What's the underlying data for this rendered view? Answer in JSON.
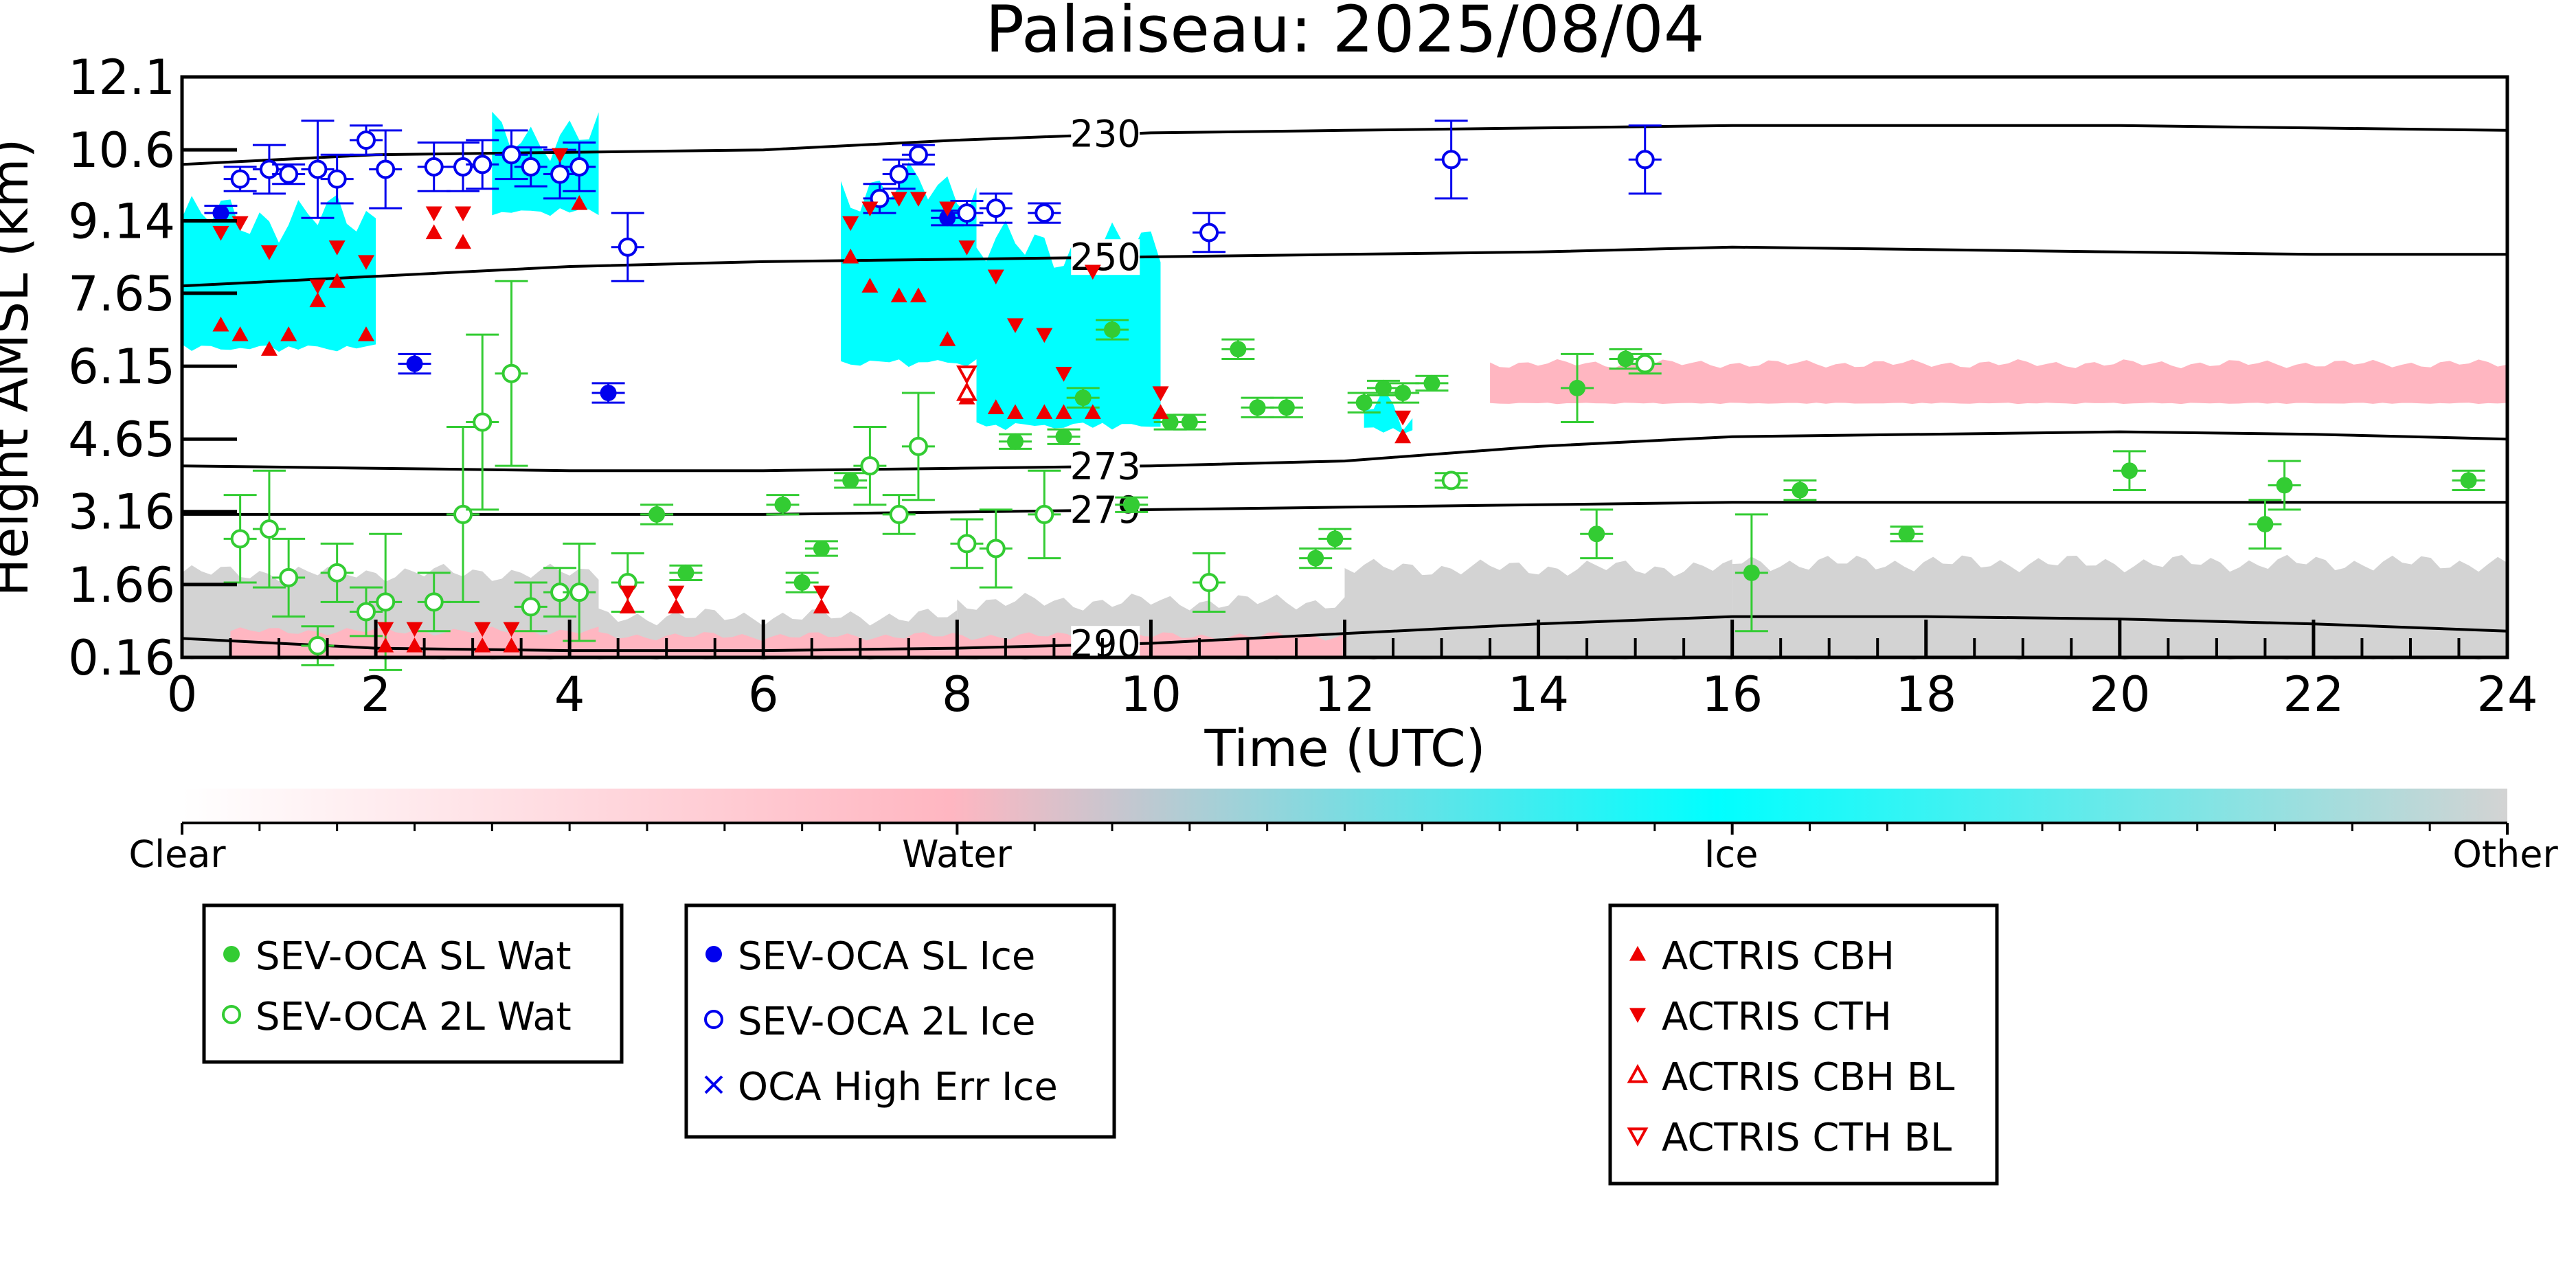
{
  "chart_data": {
    "type": "scatter",
    "title": "Palaiseau: 2025/08/04",
    "xlabel": "Time (UTC)",
    "ylabel": "Height AMSL (km)",
    "xlim": [
      0,
      24
    ],
    "ylim": [
      0.16,
      12.1
    ],
    "x_ticks": [
      0,
      2,
      4,
      6,
      8,
      10,
      12,
      14,
      16,
      18,
      20,
      22,
      24
    ],
    "y_ticks": [
      0.16,
      1.66,
      3.16,
      4.65,
      6.15,
      7.65,
      9.14,
      10.6,
      12.1
    ],
    "y_tick_labels": [
      "0.16",
      "1.66",
      "3.16",
      "4.65",
      "6.15",
      "7.65",
      "9.14",
      "10.6",
      "12.1"
    ],
    "grid": false,
    "background_field": {
      "description": "cloud classification",
      "colorbar_labels": [
        "Clear",
        "Water",
        "Ice",
        "Other"
      ],
      "colors": {
        "clear": "#ffffff",
        "water": "#ffb6c1",
        "ice": "#00ffff",
        "other": "#d3d3d3"
      },
      "ice_regions": [
        {
          "t0": 0.0,
          "t1": 2.0,
          "z0": 6.6,
          "z1": 9.2
        },
        {
          "t0": 3.2,
          "t1": 4.3,
          "z0": 9.4,
          "z1": 10.9
        },
        {
          "t0": 6.8,
          "t1": 8.2,
          "z0": 6.3,
          "z1": 9.8
        },
        {
          "t0": 8.2,
          "t1": 10.1,
          "z0": 5.0,
          "z1": 8.6
        },
        {
          "t0": 12.2,
          "t1": 12.7,
          "z0": 4.9,
          "z1": 5.3
        }
      ],
      "water_regions": [
        {
          "t0": 0.5,
          "t1": 4.3,
          "z0": 0.18,
          "z1": 0.7
        },
        {
          "t0": 4.3,
          "t1": 12.0,
          "z0": 0.18,
          "z1": 0.6
        },
        {
          "t0": 13.5,
          "t1": 24.0,
          "z0": 5.4,
          "z1": 6.2
        }
      ],
      "other_regions": [
        {
          "t0": 0.0,
          "t1": 4.3,
          "z0": 0.16,
          "z1": 1.9
        },
        {
          "t0": 4.3,
          "t1": 8.0,
          "z0": 0.16,
          "z1": 1.0
        },
        {
          "t0": 8.0,
          "t1": 12.0,
          "z0": 0.16,
          "z1": 1.3
        },
        {
          "t0": 12.0,
          "t1": 16.0,
          "z0": 0.16,
          "z1": 2.0
        },
        {
          "t0": 16.0,
          "t1": 24.0,
          "z0": 0.16,
          "z1": 2.1
        }
      ]
    },
    "isotherms": [
      {
        "label": "230",
        "x": [
          0,
          2,
          4,
          6,
          8,
          10,
          12,
          14,
          16,
          18,
          20,
          22,
          24
        ],
        "y": [
          10.3,
          10.5,
          10.55,
          10.6,
          10.8,
          10.95,
          11.0,
          11.05,
          11.1,
          11.1,
          11.1,
          11.05,
          11.0
        ]
      },
      {
        "label": "250",
        "x": [
          0,
          2,
          4,
          6,
          8,
          10,
          12,
          14,
          16,
          18,
          20,
          22,
          24
        ],
        "y": [
          7.8,
          8.0,
          8.2,
          8.3,
          8.35,
          8.4,
          8.45,
          8.5,
          8.6,
          8.55,
          8.5,
          8.45,
          8.45
        ]
      },
      {
        "label": "273",
        "x": [
          0,
          2,
          4,
          6,
          8,
          10,
          12,
          14,
          16,
          18,
          20,
          22,
          24
        ],
        "y": [
          4.1,
          4.05,
          4.0,
          4.0,
          4.05,
          4.1,
          4.2,
          4.5,
          4.7,
          4.75,
          4.8,
          4.75,
          4.65
        ]
      },
      {
        "label": "279",
        "x": [
          0,
          2,
          4,
          6,
          8,
          10,
          12,
          14,
          16,
          18,
          20,
          22,
          24
        ],
        "y": [
          3.1,
          3.1,
          3.1,
          3.1,
          3.15,
          3.2,
          3.25,
          3.3,
          3.35,
          3.35,
          3.35,
          3.35,
          3.35
        ]
      },
      {
        "label": "290",
        "x": [
          0,
          2,
          4,
          6,
          8,
          10,
          12,
          14,
          16,
          18,
          20,
          22,
          24
        ],
        "y": [
          0.55,
          0.35,
          0.3,
          0.3,
          0.35,
          0.45,
          0.65,
          0.85,
          1.0,
          1.0,
          0.95,
          0.85,
          0.7
        ]
      }
    ],
    "series": [
      {
        "name": "SEV-OCA SL Wat",
        "color": "#33cc33",
        "marker": "filled-circle",
        "points": [
          {
            "x": 4.9,
            "y": 3.1,
            "err": 0.2
          },
          {
            "x": 5.2,
            "y": 1.9,
            "err": 0.15
          },
          {
            "x": 6.2,
            "y": 3.3,
            "err": 0.2
          },
          {
            "x": 6.4,
            "y": 1.7,
            "err": 0.2
          },
          {
            "x": 6.6,
            "y": 2.4,
            "err": 0.15
          },
          {
            "x": 6.9,
            "y": 3.8,
            "err": 0.15
          },
          {
            "x": 8.6,
            "y": 4.6,
            "err": 0.15
          },
          {
            "x": 9.1,
            "y": 4.7,
            "err": 0.15
          },
          {
            "x": 9.3,
            "y": 5.5,
            "err": 0.2
          },
          {
            "x": 9.6,
            "y": 6.9,
            "err": 0.2
          },
          {
            "x": 9.8,
            "y": 3.3,
            "err": 0.15
          },
          {
            "x": 10.2,
            "y": 5.0,
            "err": 0.15
          },
          {
            "x": 10.4,
            "y": 5.0,
            "err": 0.15
          },
          {
            "x": 10.9,
            "y": 6.5,
            "err": 0.2
          },
          {
            "x": 11.1,
            "y": 5.3,
            "err": 0.2
          },
          {
            "x": 11.4,
            "y": 5.3,
            "err": 0.2
          },
          {
            "x": 11.7,
            "y": 2.2,
            "err": 0.2
          },
          {
            "x": 11.9,
            "y": 2.6,
            "err": 0.2
          },
          {
            "x": 12.2,
            "y": 5.4,
            "err": 0.2
          },
          {
            "x": 12.4,
            "y": 5.7,
            "err": 0.15
          },
          {
            "x": 12.6,
            "y": 5.6,
            "err": 0.2
          },
          {
            "x": 12.9,
            "y": 5.8,
            "err": 0.15
          },
          {
            "x": 14.4,
            "y": 5.7,
            "err": 0.7
          },
          {
            "x": 14.6,
            "y": 2.7,
            "err": 0.5
          },
          {
            "x": 14.9,
            "y": 6.3,
            "err": 0.2
          },
          {
            "x": 16.2,
            "y": 1.9,
            "err": 1.2
          },
          {
            "x": 16.7,
            "y": 3.6,
            "err": 0.2
          },
          {
            "x": 17.8,
            "y": 2.7,
            "err": 0.15
          },
          {
            "x": 20.1,
            "y": 4.0,
            "err": 0.4
          },
          {
            "x": 21.5,
            "y": 2.9,
            "err": 0.5
          },
          {
            "x": 21.7,
            "y": 3.7,
            "err": 0.5
          },
          {
            "x": 23.6,
            "y": 3.8,
            "err": 0.2
          }
        ]
      },
      {
        "name": "SEV-OCA 2L Wat",
        "color": "#33cc33",
        "marker": "open-circle",
        "points": [
          {
            "x": 0.6,
            "y": 2.6,
            "err": 0.9
          },
          {
            "x": 0.9,
            "y": 2.8,
            "err": 1.2
          },
          {
            "x": 1.1,
            "y": 1.8,
            "err": 0.8
          },
          {
            "x": 1.4,
            "y": 0.4,
            "err": 0.4
          },
          {
            "x": 1.6,
            "y": 1.9,
            "err": 0.6
          },
          {
            "x": 1.9,
            "y": 1.1,
            "err": 0.5
          },
          {
            "x": 2.1,
            "y": 1.3,
            "err": 1.4
          },
          {
            "x": 2.6,
            "y": 1.3,
            "err": 0.6
          },
          {
            "x": 2.9,
            "y": 3.1,
            "err": 1.8
          },
          {
            "x": 3.1,
            "y": 5.0,
            "err": 1.8
          },
          {
            "x": 3.4,
            "y": 6.0,
            "err": 1.9
          },
          {
            "x": 3.6,
            "y": 1.2,
            "err": 0.5
          },
          {
            "x": 3.9,
            "y": 1.5,
            "err": 0.5
          },
          {
            "x": 4.1,
            "y": 1.5,
            "err": 1.0
          },
          {
            "x": 4.6,
            "y": 1.7,
            "err": 0.6
          },
          {
            "x": 7.1,
            "y": 4.1,
            "err": 0.8
          },
          {
            "x": 7.4,
            "y": 3.1,
            "err": 0.4
          },
          {
            "x": 7.6,
            "y": 4.5,
            "err": 1.1
          },
          {
            "x": 8.1,
            "y": 2.5,
            "err": 0.5
          },
          {
            "x": 8.4,
            "y": 2.4,
            "err": 0.8
          },
          {
            "x": 8.9,
            "y": 3.1,
            "err": 0.9
          },
          {
            "x": 10.6,
            "y": 1.7,
            "err": 0.6
          },
          {
            "x": 13.1,
            "y": 3.8,
            "err": 0.15
          },
          {
            "x": 15.1,
            "y": 6.2,
            "err": 0.2
          }
        ]
      },
      {
        "name": "SEV-OCA SL Ice",
        "color": "#0000ee",
        "marker": "filled-circle",
        "points": [
          {
            "x": 0.4,
            "y": 9.3,
            "err": 0.15
          },
          {
            "x": 2.4,
            "y": 6.2,
            "err": 0.2
          },
          {
            "x": 4.4,
            "y": 5.6,
            "err": 0.2
          },
          {
            "x": 7.9,
            "y": 9.2,
            "err": 0.15
          }
        ]
      },
      {
        "name": "SEV-OCA 2L Ice",
        "color": "#0000ee",
        "marker": "open-circle",
        "points": [
          {
            "x": 0.6,
            "y": 10.0,
            "err": 0.25
          },
          {
            "x": 0.9,
            "y": 10.2,
            "err": 0.5
          },
          {
            "x": 1.1,
            "y": 10.1,
            "err": 0.2
          },
          {
            "x": 1.4,
            "y": 10.2,
            "err": 1.0
          },
          {
            "x": 1.6,
            "y": 10.0,
            "err": 0.5
          },
          {
            "x": 1.9,
            "y": 10.8,
            "err": 0.3
          },
          {
            "x": 2.1,
            "y": 10.2,
            "err": 0.8
          },
          {
            "x": 2.6,
            "y": 10.25,
            "err": 0.5
          },
          {
            "x": 2.9,
            "y": 10.25,
            "err": 0.5
          },
          {
            "x": 3.1,
            "y": 10.3,
            "err": 0.5
          },
          {
            "x": 3.4,
            "y": 10.5,
            "err": 0.5
          },
          {
            "x": 3.6,
            "y": 10.25,
            "err": 0.4
          },
          {
            "x": 3.9,
            "y": 10.1,
            "err": 0.5
          },
          {
            "x": 4.1,
            "y": 10.25,
            "err": 0.5
          },
          {
            "x": 4.6,
            "y": 8.6,
            "err": 0.7
          },
          {
            "x": 7.2,
            "y": 9.6,
            "err": 0.3
          },
          {
            "x": 7.4,
            "y": 10.1,
            "err": 0.3
          },
          {
            "x": 7.6,
            "y": 10.5,
            "err": 0.2
          },
          {
            "x": 8.1,
            "y": 9.3,
            "err": 0.25
          },
          {
            "x": 8.4,
            "y": 9.4,
            "err": 0.3
          },
          {
            "x": 8.9,
            "y": 9.3,
            "err": 0.2
          },
          {
            "x": 10.6,
            "y": 8.9,
            "err": 0.4
          },
          {
            "x": 13.1,
            "y": 10.4,
            "err": 0.8
          },
          {
            "x": 15.1,
            "y": 10.4,
            "err": 0.7
          }
        ]
      },
      {
        "name": "OCA High Err Ice",
        "color": "#0000ee",
        "marker": "x",
        "points": []
      },
      {
        "name": "ACTRIS CBH",
        "color": "#ee0000",
        "marker": "filled-triangle-up",
        "points": [
          {
            "x": 0.4,
            "y": 7.0
          },
          {
            "x": 0.6,
            "y": 6.8
          },
          {
            "x": 0.9,
            "y": 6.5
          },
          {
            "x": 1.1,
            "y": 6.8
          },
          {
            "x": 1.4,
            "y": 7.5
          },
          {
            "x": 1.6,
            "y": 7.9
          },
          {
            "x": 1.9,
            "y": 6.8
          },
          {
            "x": 2.6,
            "y": 8.9
          },
          {
            "x": 2.9,
            "y": 8.7
          },
          {
            "x": 4.1,
            "y": 9.5
          },
          {
            "x": 4.6,
            "y": 1.2
          },
          {
            "x": 5.1,
            "y": 1.2
          },
          {
            "x": 6.6,
            "y": 1.2
          },
          {
            "x": 6.9,
            "y": 8.4
          },
          {
            "x": 7.1,
            "y": 7.8
          },
          {
            "x": 7.4,
            "y": 7.6
          },
          {
            "x": 7.6,
            "y": 7.6
          },
          {
            "x": 7.9,
            "y": 6.7
          },
          {
            "x": 8.1,
            "y": 5.5
          },
          {
            "x": 8.4,
            "y": 5.3
          },
          {
            "x": 8.6,
            "y": 5.2
          },
          {
            "x": 8.9,
            "y": 5.2
          },
          {
            "x": 9.1,
            "y": 5.2
          },
          {
            "x": 9.4,
            "y": 5.2
          },
          {
            "x": 10.1,
            "y": 5.2
          },
          {
            "x": 12.6,
            "y": 4.7
          },
          {
            "x": 2.1,
            "y": 0.4
          },
          {
            "x": 2.4,
            "y": 0.4
          },
          {
            "x": 3.1,
            "y": 0.4
          },
          {
            "x": 3.4,
            "y": 0.4
          }
        ]
      },
      {
        "name": "ACTRIS CTH",
        "color": "#ee0000",
        "marker": "filled-triangle-down",
        "points": [
          {
            "x": 0.4,
            "y": 8.9
          },
          {
            "x": 0.6,
            "y": 9.1
          },
          {
            "x": 0.9,
            "y": 8.5
          },
          {
            "x": 1.4,
            "y": 7.8
          },
          {
            "x": 1.6,
            "y": 8.6
          },
          {
            "x": 1.9,
            "y": 8.3
          },
          {
            "x": 2.6,
            "y": 9.3
          },
          {
            "x": 2.9,
            "y": 9.3
          },
          {
            "x": 3.9,
            "y": 10.5
          },
          {
            "x": 4.6,
            "y": 1.5
          },
          {
            "x": 5.1,
            "y": 1.5
          },
          {
            "x": 6.6,
            "y": 1.5
          },
          {
            "x": 6.9,
            "y": 9.1
          },
          {
            "x": 7.1,
            "y": 9.4
          },
          {
            "x": 7.4,
            "y": 9.6
          },
          {
            "x": 7.6,
            "y": 9.6
          },
          {
            "x": 7.9,
            "y": 9.4
          },
          {
            "x": 8.1,
            "y": 8.6
          },
          {
            "x": 8.4,
            "y": 8.0
          },
          {
            "x": 8.6,
            "y": 7.0
          },
          {
            "x": 8.9,
            "y": 6.8
          },
          {
            "x": 9.1,
            "y": 6.0
          },
          {
            "x": 9.4,
            "y": 8.1
          },
          {
            "x": 10.1,
            "y": 5.6
          },
          {
            "x": 12.6,
            "y": 5.1
          },
          {
            "x": 2.1,
            "y": 0.75
          },
          {
            "x": 2.4,
            "y": 0.75
          },
          {
            "x": 3.1,
            "y": 0.75
          },
          {
            "x": 3.4,
            "y": 0.75
          }
        ]
      },
      {
        "name": "ACTRIS CBH BL",
        "color": "#ee0000",
        "marker": "open-triangle-up",
        "points": [
          {
            "x": 8.1,
            "y": 5.6
          }
        ]
      },
      {
        "name": "ACTRIS CTH BL",
        "color": "#ee0000",
        "marker": "open-triangle-down",
        "points": [
          {
            "x": 8.1,
            "y": 6.0
          }
        ]
      }
    ],
    "legend": [
      [
        "SEV-OCA SL Wat",
        "SEV-OCA 2L Wat"
      ],
      [
        "SEV-OCA SL Ice",
        "SEV-OCA 2L Ice",
        "OCA High Err Ice"
      ],
      [
        "ACTRIS CBH",
        "ACTRIS CTH",
        "ACTRIS CBH BL",
        "ACTRIS CTH BL"
      ]
    ],
    "legend_placement": "below"
  }
}
